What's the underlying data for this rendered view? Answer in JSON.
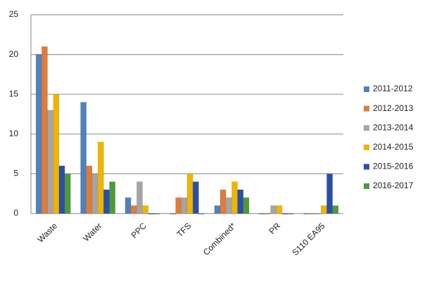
{
  "chart_data": {
    "type": "bar",
    "categories": [
      "Waste",
      "Water",
      "PPC",
      "TFS",
      "Combined*",
      "PR",
      "S110 EA95"
    ],
    "series": [
      {
        "name": "2011-2012",
        "color": "#4f81bd",
        "values": [
          20,
          14,
          2,
          0,
          1,
          0,
          0
        ]
      },
      {
        "name": "2012-2013",
        "color": "#e07b39",
        "values": [
          21,
          6,
          1,
          2,
          3,
          0,
          0
        ]
      },
      {
        "name": "2013-2014",
        "color": "#a5a5a5",
        "values": [
          13,
          5,
          4,
          2,
          2,
          1,
          0
        ]
      },
      {
        "name": "2014-2015",
        "color": "#f0b400",
        "values": [
          15,
          9,
          1,
          5,
          4,
          1,
          1
        ]
      },
      {
        "name": "2015-2016",
        "color": "#2a4fa8",
        "values": [
          6,
          3,
          0,
          4,
          3,
          0,
          5
        ]
      },
      {
        "name": "2016-2017",
        "color": "#4e9a3a",
        "values": [
          5,
          4,
          0,
          0,
          2,
          0,
          1
        ]
      }
    ],
    "ylim": [
      0,
      25
    ],
    "yticks": [
      0,
      5,
      10,
      15,
      20,
      25
    ],
    "grid": true,
    "legend": "right"
  }
}
